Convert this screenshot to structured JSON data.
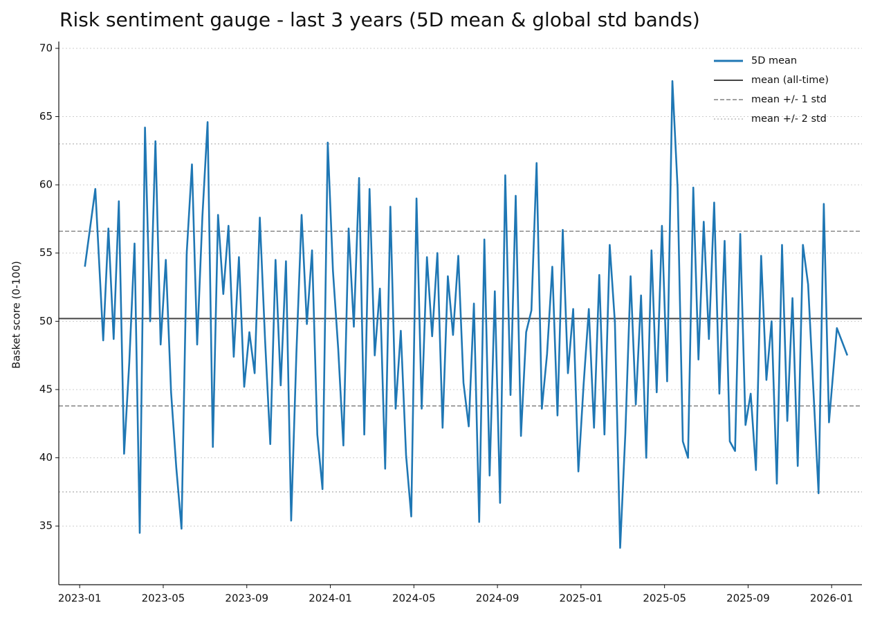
{
  "chart_data": {
    "type": "line",
    "title": "Risk sentiment gauge - last 3 years (5D mean & global std bands)",
    "ylabel": "Basket score (0-100)",
    "x": [
      "2023-01",
      "2023-01",
      "2023-02",
      "2023-02",
      "2023-02",
      "2023-02",
      "2023-03",
      "2023-03",
      "2023-03",
      "2023-03",
      "2023-04",
      "2023-04",
      "2023-04",
      "2023-04",
      "2023-05",
      "2023-05",
      "2023-05",
      "2023-05",
      "2023-06",
      "2023-06",
      "2023-06",
      "2023-06",
      "2023-07",
      "2023-07",
      "2023-07",
      "2023-07",
      "2023-08",
      "2023-08",
      "2023-08",
      "2023-08",
      "2023-09",
      "2023-09",
      "2023-09",
      "2023-09",
      "2023-10",
      "2023-10",
      "2023-10",
      "2023-10",
      "2023-11",
      "2023-11",
      "2023-11",
      "2023-11",
      "2023-12",
      "2023-12",
      "2023-12",
      "2023-12",
      "2024-01",
      "2024-01",
      "2024-01",
      "2024-01",
      "2024-02",
      "2024-02",
      "2024-02",
      "2024-02",
      "2024-03",
      "2024-03",
      "2024-03",
      "2024-03",
      "2024-04",
      "2024-04",
      "2024-04",
      "2024-04",
      "2024-05",
      "2024-05",
      "2024-05",
      "2024-05",
      "2024-06",
      "2024-06",
      "2024-06",
      "2024-06",
      "2024-07",
      "2024-07",
      "2024-07",
      "2024-07",
      "2024-08",
      "2024-08",
      "2024-08",
      "2024-08",
      "2024-09",
      "2024-09",
      "2024-09",
      "2024-09",
      "2024-10",
      "2024-10",
      "2024-10",
      "2024-10",
      "2024-11",
      "2024-11",
      "2024-11",
      "2024-11",
      "2024-12",
      "2024-12",
      "2024-12",
      "2024-12",
      "2025-01",
      "2025-01",
      "2025-01",
      "2025-01",
      "2025-02",
      "2025-02",
      "2025-02",
      "2025-02",
      "2025-03",
      "2025-03",
      "2025-03",
      "2025-03",
      "2025-04",
      "2025-04",
      "2025-04",
      "2025-04",
      "2025-05",
      "2025-05",
      "2025-05",
      "2025-05",
      "2025-06",
      "2025-06",
      "2025-06",
      "2025-06",
      "2025-07",
      "2025-07",
      "2025-07",
      "2025-07",
      "2025-08",
      "2025-08",
      "2025-08",
      "2025-08",
      "2025-09",
      "2025-09",
      "2025-09",
      "2025-09",
      "2025-10",
      "2025-10",
      "2025-10",
      "2025-10",
      "2025-11",
      "2025-11",
      "2025-11",
      "2025-11",
      "2025-12",
      "2025-12",
      "2025-12",
      "2025-12",
      "2026-01",
      "2026-01"
    ],
    "series": [
      {
        "name": "5D mean",
        "color": "#1f77b4",
        "values": [
          54,
          59.7,
          48.6,
          56.8,
          48.7,
          58.8,
          40.3,
          47,
          55.7,
          34.5,
          64.2,
          50,
          63.2,
          48.3,
          54.5,
          44.8,
          39.3,
          34.8,
          55,
          61.5,
          48.3,
          57.7,
          64.6,
          40.8,
          57.8,
          52,
          57,
          47.4,
          54.7,
          45.2,
          49.2,
          46.2,
          57.6,
          48.6,
          41,
          54.5,
          45.3,
          54.4,
          35.4,
          47.7,
          57.8,
          49.8,
          55.2,
          41.7,
          37.7,
          63.1,
          53.7,
          48,
          40.9,
          56.8,
          49.6,
          60.5,
          41.7,
          59.7,
          47.5,
          52.4,
          39.2,
          58.4,
          43.6,
          49.3,
          40.2,
          35.7,
          59,
          43.6,
          54.7,
          48.9,
          55,
          42.2,
          53.3,
          49,
          54.8,
          45.5,
          42.3,
          51.3,
          35.3,
          56,
          38.7,
          52.2,
          36.7,
          60.7,
          44.6,
          59.2,
          41.6,
          49.2,
          50.8,
          61.6,
          43.6,
          47.6,
          54,
          43.1,
          56.7,
          46.2,
          50.9,
          39,
          45.4,
          50.9,
          42.2,
          53.4,
          41.7,
          55.6,
          49.9,
          33.4,
          41.8,
          53.3,
          43.9,
          51.9,
          40,
          55.2,
          44.8,
          57,
          45.6,
          67.6,
          59.8,
          41.2,
          40,
          59.8,
          47.2,
          57.3,
          48.7,
          58.7,
          44.7,
          55.9,
          41.2,
          40.5,
          56.4,
          42.4,
          44.7,
          39.1,
          54.8,
          45.7,
          50,
          38.1,
          55.6,
          42.7,
          51.7,
          39.4,
          55.6,
          52.7,
          45,
          37.4,
          58.6,
          42.6,
          49.5,
          47.5
        ]
      }
    ],
    "reference_lines": [
      {
        "name": "mean (all-time)",
        "color": "#444444",
        "style": "solid",
        "values": [
          50.2
        ]
      },
      {
        "name": "mean +/- 1 std",
        "color": "#808080",
        "style": "dashed",
        "values": [
          56.6,
          43.8
        ]
      },
      {
        "name": "mean +/- 2 std",
        "color": "#bbbbbb",
        "style": "dotted",
        "values": [
          63.0,
          37.5
        ]
      }
    ],
    "xlim": [
      "2022-12",
      "2026-02"
    ],
    "xticks": [
      "2023-01",
      "2023-05",
      "2023-09",
      "2024-01",
      "2024-05",
      "2024-09",
      "2025-01",
      "2025-05",
      "2025-09",
      "2026-01"
    ],
    "ylim": [
      30.7,
      70.5
    ],
    "yticks": [
      35,
      40,
      45,
      50,
      55,
      60,
      65,
      70
    ],
    "grid": true,
    "legend": "upper right"
  }
}
